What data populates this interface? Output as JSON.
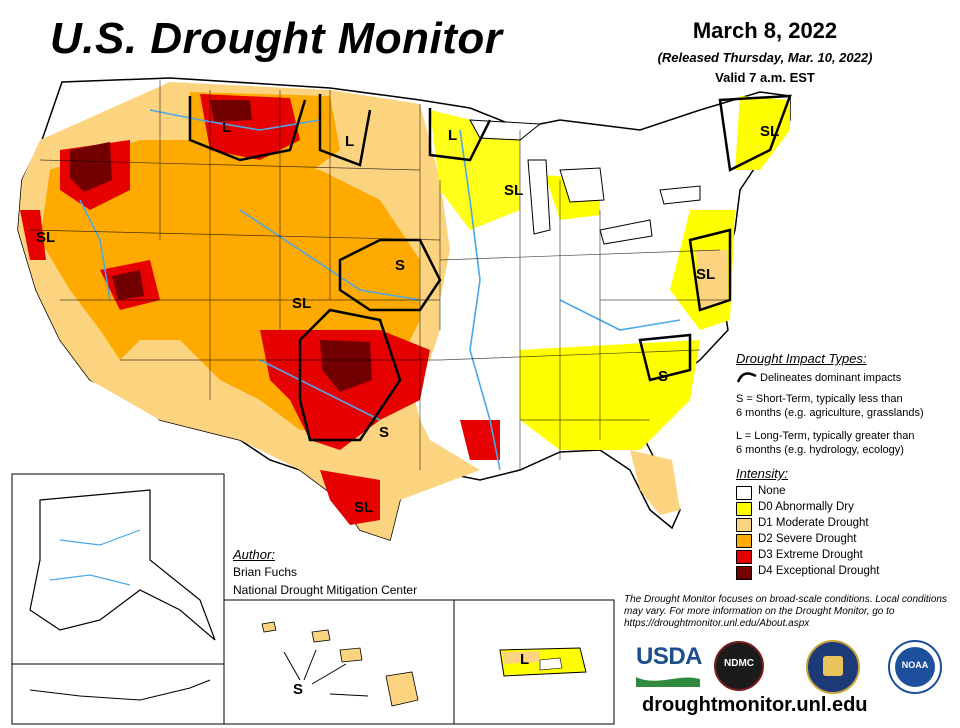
{
  "header": {
    "title": "U.S. Drought Monitor",
    "date": "March 8, 2022",
    "released": "(Released Thursday, Mar. 10, 2022)",
    "valid": "Valid 7 a.m. EST"
  },
  "colors": {
    "none": "#ffffff",
    "d0": "#ffff00",
    "d1": "#fcd37f",
    "d2": "#ffaa00",
    "d3": "#e60000",
    "d4": "#730000",
    "water": "#4aa8e8"
  },
  "impact_labels": [
    {
      "text": "L"
    },
    {
      "text": "L"
    },
    {
      "text": "L"
    },
    {
      "text": "SL"
    },
    {
      "text": "SL"
    },
    {
      "text": "SL"
    },
    {
      "text": "S"
    },
    {
      "text": "SL"
    },
    {
      "text": "S"
    },
    {
      "text": "SL"
    },
    {
      "text": "SL"
    },
    {
      "text": "S"
    },
    {
      "text": "S"
    },
    {
      "text": "L"
    }
  ],
  "impact_types": {
    "heading": "Drought Impact Types:",
    "delineates": "Delineates dominant impacts",
    "short_term_line1": "S = Short-Term, typically less than",
    "short_term_line2": "6 months (e.g. agriculture, grasslands)",
    "long_term_line1": "L = Long-Term, typically greater than",
    "long_term_line2": "6 months (e.g. hydrology, ecology)"
  },
  "intensity": {
    "heading": "Intensity:",
    "items": [
      {
        "label": "None",
        "color": "#ffffff"
      },
      {
        "label": "D0 Abnormally Dry",
        "color": "#ffff00"
      },
      {
        "label": "D1 Moderate Drought",
        "color": "#fcd37f"
      },
      {
        "label": "D2 Severe Drought",
        "color": "#ffaa00"
      },
      {
        "label": "D3 Extreme Drought",
        "color": "#e60000"
      },
      {
        "label": "D4 Exceptional Drought",
        "color": "#730000"
      }
    ]
  },
  "author": {
    "heading": "Author:",
    "name": "Brian Fuchs",
    "org": "National Drought Mitigation Center"
  },
  "note": "The Drought Monitor focuses on broad-scale conditions. Local conditions may vary. For more information on the Drought Monitor, go to https://droughtmonitor.unl.edu/About.aspx",
  "logos": {
    "usda": "USDA",
    "ndmc": "NDMC",
    "noaa": "NOAA"
  },
  "url": "droughtmonitor.unl.edu"
}
